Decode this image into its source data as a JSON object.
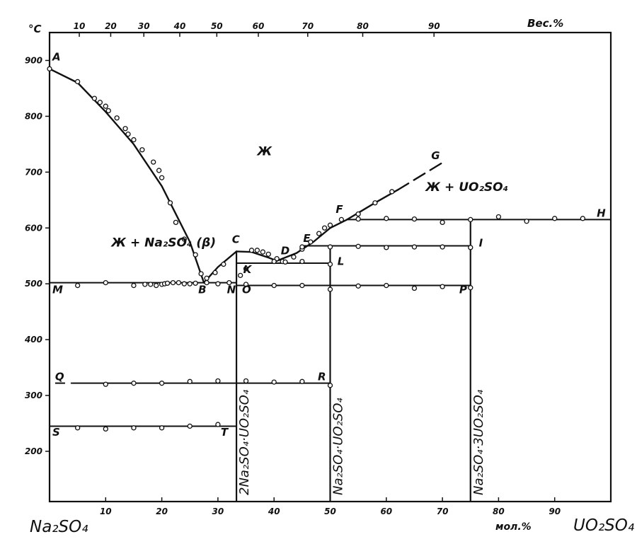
{
  "chart_data": {
    "type": "line",
    "y_unit": "°C",
    "top_axis_unit": "Вес.%",
    "bottom_axis_unit": "мол.%",
    "left_component": "Na₂SO₄",
    "right_component": "UO₂SO₄",
    "xlim": [
      0,
      100
    ],
    "ylim": [
      110,
      950
    ],
    "grid": false,
    "x_ticks": [
      10,
      20,
      30,
      40,
      50,
      60,
      70,
      80,
      90
    ],
    "y_ticks": [
      200,
      300,
      400,
      500,
      600,
      700,
      800,
      900
    ],
    "top_ticks": [
      10,
      20,
      30,
      40,
      50,
      60,
      70,
      80,
      90
    ],
    "top_tick_positions_mol": [
      5.3,
      10.9,
      16.8,
      23.2,
      29.8,
      37.2,
      46,
      55.8,
      68.5
    ],
    "regions": [
      {
        "text": "Ж",
        "x": 37,
        "y": 730
      },
      {
        "text": "Ж + Na₂SO₄ (β)",
        "x": 11,
        "y": 567
      },
      {
        "text": "Ж + UO₂SO₄",
        "x": 67,
        "y": 666
      }
    ],
    "point_labels": [
      {
        "text": "A",
        "x": 0.5,
        "y": 900
      },
      {
        "text": "B",
        "x": 26.5,
        "y": 483
      },
      {
        "text": "C",
        "x": 32.5,
        "y": 573
      },
      {
        "text": "D",
        "x": 41.2,
        "y": 553
      },
      {
        "text": "E",
        "x": 45.2,
        "y": 575
      },
      {
        "text": "F",
        "x": 51,
        "y": 627
      },
      {
        "text": "G",
        "x": 68,
        "y": 723
      },
      {
        "text": "H",
        "x": 97.5,
        "y": 620
      },
      {
        "text": "I",
        "x": 76.5,
        "y": 567
      },
      {
        "text": "K",
        "x": 34.5,
        "y": 519
      },
      {
        "text": "L",
        "x": 51.3,
        "y": 534
      },
      {
        "text": "M",
        "x": 0.5,
        "y": 483
      },
      {
        "text": "N",
        "x": 31.6,
        "y": 483
      },
      {
        "text": "O",
        "x": 34.3,
        "y": 483
      },
      {
        "text": "P",
        "x": 73,
        "y": 483
      },
      {
        "text": "Q",
        "x": 1,
        "y": 327
      },
      {
        "text": "R",
        "x": 47.8,
        "y": 327
      },
      {
        "text": "S",
        "x": 0.5,
        "y": 228
      },
      {
        "text": "T",
        "x": 30.5,
        "y": 228
      }
    ],
    "compounds": [
      {
        "label": "2Na₂SO₄·UO₂SO₄",
        "x": 33.3
      },
      {
        "label": "Na₂SO₄·UO₂SO₄",
        "x": 50
      },
      {
        "label": "Na₂SO₄·3UO₂SO₄",
        "x": 75
      }
    ],
    "liquidus": [
      {
        "name": "AB",
        "x": [
          0,
          5,
          10,
          15,
          20,
          25,
          27.5
        ],
        "y": [
          885,
          860,
          808,
          750,
          675,
          575,
          502
        ]
      },
      {
        "name": "BC",
        "x": [
          27.5,
          30,
          33.3
        ],
        "y": [
          502,
          530,
          558
        ]
      },
      {
        "name": "CD",
        "x": [
          33.3,
          36,
          39,
          40.5
        ],
        "y": [
          558,
          557,
          547,
          541
        ]
      },
      {
        "name": "DEF",
        "x": [
          40.5,
          44,
          47,
          50,
          53
        ],
        "y": [
          541,
          555,
          575,
          600,
          615
        ]
      },
      {
        "name": "FG",
        "x": [
          53,
          58,
          62
        ],
        "y": [
          615,
          645,
          668
        ]
      },
      {
        "name": "FG_dashed",
        "x": [
          62,
          70.5
        ],
        "y": [
          668,
          720
        ]
      }
    ],
    "horizontals": [
      {
        "name": "MN",
        "x": [
          0,
          33.3
        ],
        "y": 502
      },
      {
        "name": "OP",
        "x": [
          33.3,
          75
        ],
        "y": 497
      },
      {
        "name": "K-L",
        "x": [
          33.3,
          50
        ],
        "y": 537
      },
      {
        "name": "E-I",
        "x": [
          45,
          75
        ],
        "y": 568
      },
      {
        "name": "F-H",
        "x": [
          53,
          100
        ],
        "y": 615
      },
      {
        "name": "QR",
        "x": [
          4,
          50
        ],
        "y": 322
      },
      {
        "name": "Q_dashed",
        "x": [
          1,
          4
        ],
        "y": 322
      },
      {
        "name": "ST",
        "x": [
          0,
          33.3
        ],
        "y": 245
      }
    ],
    "verticals": [
      {
        "name": "2:1",
        "x": 33.3,
        "y": [
          110,
          558
        ]
      },
      {
        "name": "1:1",
        "x": 50,
        "y": [
          110,
          568
        ]
      },
      {
        "name": "1:3",
        "x": 75,
        "y": [
          110,
          615
        ]
      }
    ],
    "points": {
      "x": [
        0,
        5,
        8,
        9,
        10,
        10.5,
        12,
        13.5,
        14,
        15,
        16.5,
        18.5,
        19.5,
        20,
        21.5,
        22.5,
        24,
        26,
        27,
        28,
        29.5,
        31,
        36,
        37,
        38,
        39,
        40.5,
        41.5,
        42,
        43.5,
        45,
        46.5,
        48,
        49,
        50,
        52,
        55,
        58,
        61,
        55,
        60,
        65,
        70,
        75,
        80,
        85,
        90,
        95,
        45,
        50,
        55,
        60,
        65,
        70,
        75,
        34,
        35,
        40,
        45,
        50,
        5,
        10,
        15,
        17,
        18,
        19,
        20,
        20.5,
        21,
        22,
        23,
        24,
        25,
        26,
        28,
        30,
        32,
        35,
        40,
        45,
        50,
        55,
        60,
        65,
        70,
        75,
        10,
        15,
        20,
        25,
        30,
        35,
        40,
        45,
        50,
        5,
        10,
        15,
        20,
        25,
        30
      ],
      "y": [
        885,
        862,
        832,
        825,
        818,
        810,
        797,
        778,
        768,
        758,
        740,
        718,
        703,
        690,
        645,
        610,
        580,
        552,
        518,
        510,
        520,
        535,
        560,
        560,
        557,
        553,
        545,
        540,
        539,
        548,
        562,
        575,
        590,
        600,
        605,
        615,
        625,
        645,
        665,
        616,
        617,
        616,
        610,
        615,
        620,
        612,
        617,
        617,
        566,
        566,
        567,
        565,
        566,
        566,
        565,
        515,
        527,
        540,
        540,
        535,
        497,
        502,
        497,
        499,
        499,
        497,
        499,
        500,
        501,
        502,
        502,
        500,
        500,
        501,
        502,
        500,
        502,
        499,
        497,
        497,
        490,
        496,
        497,
        492,
        495,
        493,
        320,
        322,
        322,
        325,
        326,
        326,
        324,
        325,
        318,
        242,
        240,
        242,
        242,
        245,
        248
      ]
    }
  }
}
